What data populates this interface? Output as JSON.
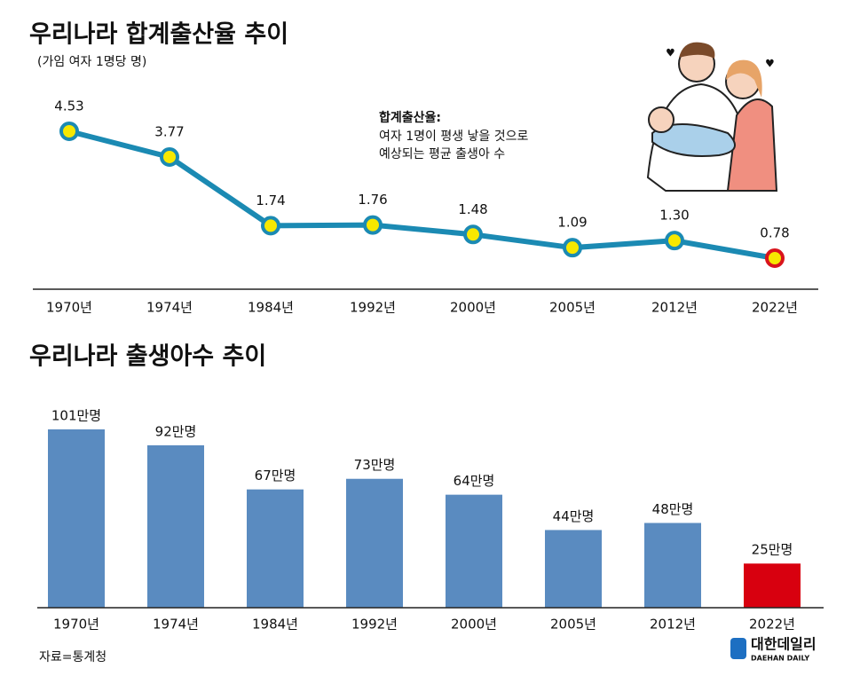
{
  "chart_data": [
    {
      "type": "line",
      "title": "우리나라 합계출산율 추이",
      "subtitle": "(가임 여자 1명당 명)",
      "annotation": {
        "title": "합계출산율:",
        "lines": [
          "여자 1명이 평생 낳을 것으로",
          "예상되는 평균 출생아 수"
        ]
      },
      "categories": [
        "1970년",
        "1974년",
        "1984년",
        "1992년",
        "2000년",
        "2005년",
        "2012년",
        "2022년"
      ],
      "values": [
        4.53,
        3.77,
        1.74,
        1.76,
        1.48,
        1.09,
        1.3,
        0.78
      ],
      "value_labels": [
        "4.53",
        "3.77",
        "1.74",
        "1.76",
        "1.48",
        "1.09",
        "1.30",
        "0.78"
      ],
      "color": "#1b8ab3",
      "marker_color": "#f7e800",
      "highlight_color": "#d9141c"
    },
    {
      "type": "bar",
      "title": "우리나라 출생아수 추이",
      "categories": [
        "1970년",
        "1974년",
        "1984년",
        "1992년",
        "2000년",
        "2005년",
        "2012년",
        "2022년"
      ],
      "values": [
        101,
        92,
        67,
        73,
        64,
        44,
        48,
        25
      ],
      "value_labels": [
        "101만명",
        "92만명",
        "67만명",
        "73만명",
        "64만명",
        "44만명",
        "48만명",
        "25만명"
      ],
      "colors": [
        "#5a8bc0",
        "#5a8bc0",
        "#5a8bc0",
        "#5a8bc0",
        "#5a8bc0",
        "#5a8bc0",
        "#5a8bc0",
        "#d8000f"
      ]
    }
  ],
  "source": "자료=통계청",
  "logo": {
    "name": "대한데일리",
    "english": "DAEHAN DAILY"
  }
}
